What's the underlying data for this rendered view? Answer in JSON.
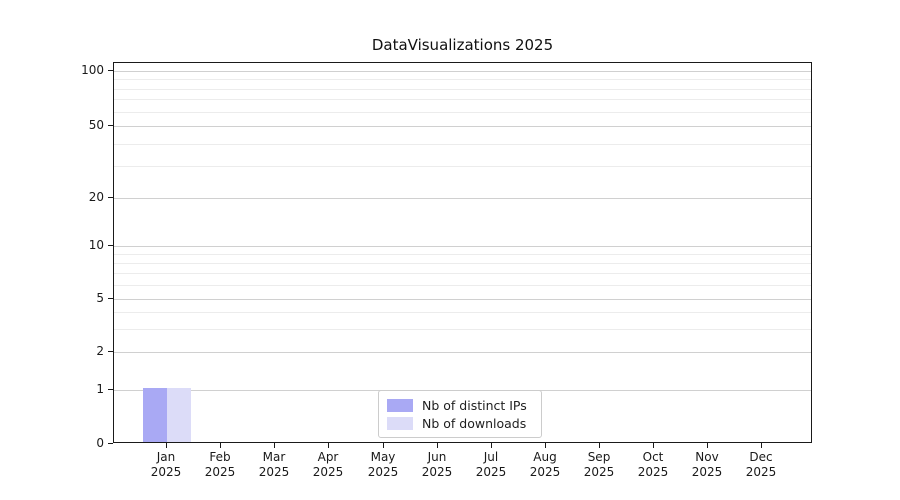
{
  "chart_data": {
    "type": "bar",
    "title": "DataVisualizations 2025",
    "categories": [
      "Jan",
      "Feb",
      "Mar",
      "Apr",
      "May",
      "Jun",
      "Jul",
      "Aug",
      "Sep",
      "Oct",
      "Nov",
      "Dec"
    ],
    "x_year": "2025",
    "series": [
      {
        "name": "Nb of distinct IPs",
        "color": "#a9a9f4",
        "values": [
          1,
          0,
          0,
          0,
          0,
          0,
          0,
          0,
          0,
          0,
          0,
          0
        ]
      },
      {
        "name": "Nb of downloads",
        "color": "#dcdcf8",
        "values": [
          1,
          0,
          0,
          0,
          0,
          0,
          0,
          0,
          0,
          0,
          0,
          0
        ]
      }
    ],
    "yticks": [
      0,
      1,
      2,
      5,
      10,
      20,
      50,
      100
    ],
    "minor_yticks": [
      3,
      4,
      6,
      7,
      8,
      9,
      30,
      40,
      60,
      70,
      80,
      90
    ],
    "ylim": [
      0,
      130
    ],
    "yscale": "log above 1, linear 0-1 (symlog-like)",
    "xlabel": "",
    "ylabel": "",
    "grid": "horizontal major and minor gridlines",
    "legend_position": "lower center"
  },
  "colors": {
    "background": "#ffffff",
    "axis": "#1a1a1a",
    "grid_major": "#d0d0d0",
    "grid_minor": "#ececec",
    "text": "#1a1a1a",
    "legend_border": "#cccccc"
  }
}
